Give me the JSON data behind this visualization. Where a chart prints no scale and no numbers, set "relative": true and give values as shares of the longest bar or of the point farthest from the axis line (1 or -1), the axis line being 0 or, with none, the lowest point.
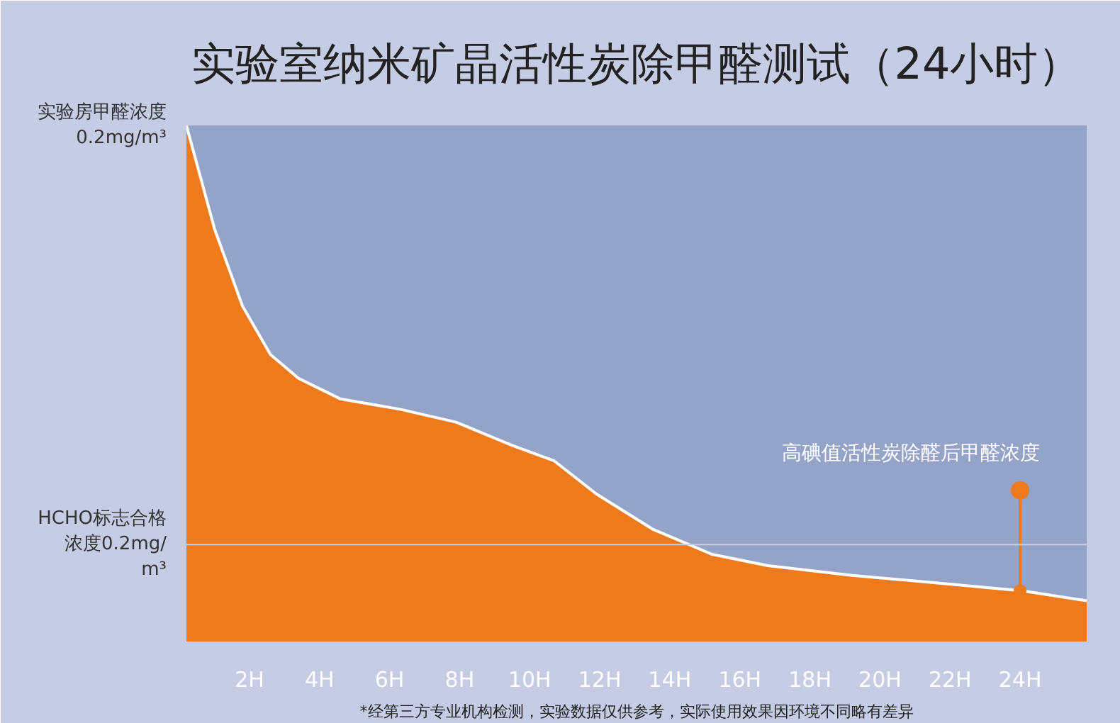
{
  "chart_data": {
    "type": "area",
    "title": "实验室纳米矿晶活性炭除甲醛测试（24小时）",
    "relative": true,
    "x": [
      0.2,
      1.0,
      1.8,
      2.6,
      3.4,
      4.6,
      6.3,
      7.9,
      9.5,
      10.7,
      11.9,
      13.5,
      15.2,
      16.8,
      19.2,
      21.7,
      24.1,
      25.9
    ],
    "series": [
      {
        "color": "#ef7a1c",
        "values": [
          1.0,
          0.8,
          0.65,
          0.556,
          0.51,
          0.47,
          0.45,
          0.425,
          0.38,
          0.35,
          0.286,
          0.218,
          0.169,
          0.147,
          0.128,
          0.113,
          0.098,
          0.079
        ]
      }
    ],
    "xlim": [
      0.2,
      25.9
    ],
    "xticks": [
      {
        "value": 2,
        "label": "2H"
      },
      {
        "value": 4,
        "label": "4H"
      },
      {
        "value": 6,
        "label": "6H"
      },
      {
        "value": 8,
        "label": "8H"
      },
      {
        "value": 10,
        "label": "10H"
      },
      {
        "value": 12,
        "label": "12H"
      },
      {
        "value": 14,
        "label": "14H"
      },
      {
        "value": 16,
        "label": "16H"
      },
      {
        "value": 18,
        "label": "18H"
      },
      {
        "value": 20,
        "label": "20H"
      },
      {
        "value": 22,
        "label": "22H"
      },
      {
        "value": 24,
        "label": "24H"
      }
    ],
    "ref_lines": [
      {
        "axis": "y",
        "value": 0.188,
        "label": "HCHO标志合格浓度0.2mg/m³",
        "color": "#c8cfe2"
      }
    ],
    "annotations": [
      {
        "text": "实验房甲醛浓度\n0.2mg/m³",
        "x": 0.2,
        "y": 1.0
      },
      {
        "text": "高碘值活性炭除醛后甲醛浓度",
        "x": 24,
        "y": 0.293
      },
      "*经第三方专业机构检测，实验数据仅供参考，实际使用效果因环境不同略有差异"
    ],
    "grid": false
  }
}
